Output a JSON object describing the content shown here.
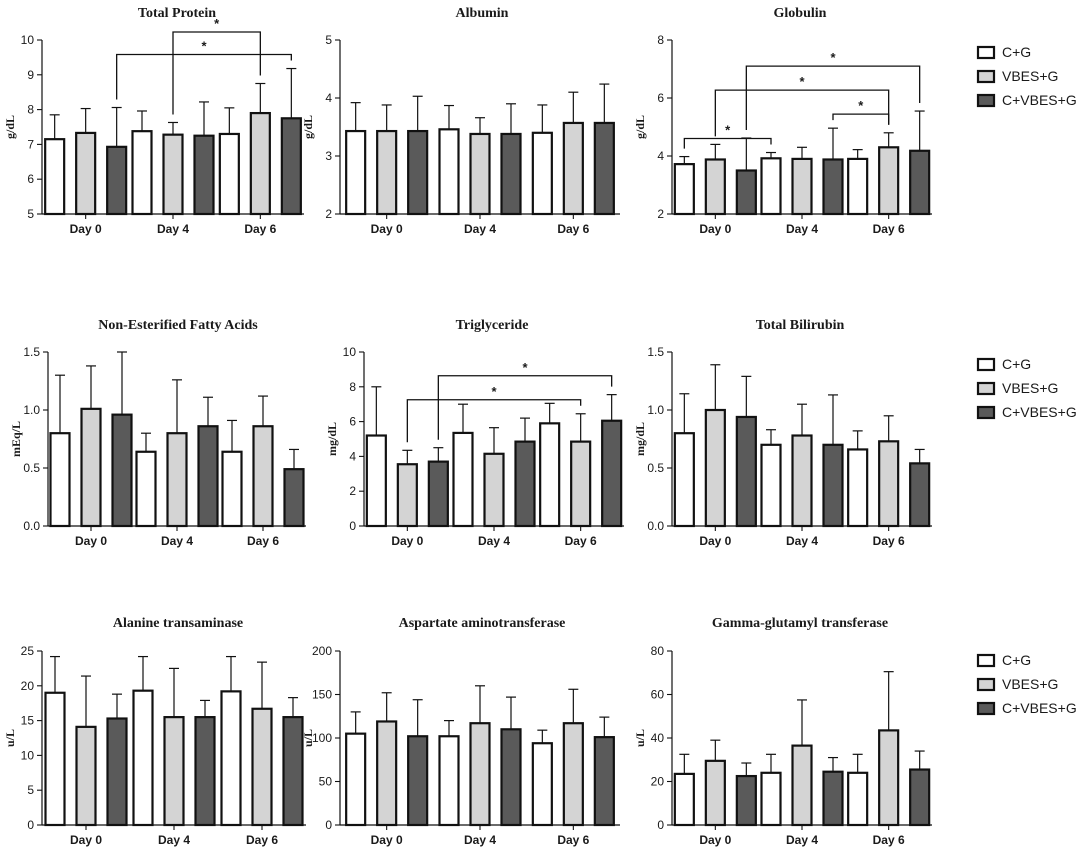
{
  "figure": {
    "legends": [
      {
        "items": [
          "C+G",
          "VBES+G",
          "C+VBES+G"
        ]
      },
      {
        "items": [
          "C+G",
          "VBES+G",
          "C+VBES+G"
        ]
      },
      {
        "items": [
          "C+G",
          "VBES+G",
          "C+VBES+G"
        ]
      }
    ]
  },
  "style": {
    "bar_colors": [
      "#ffffff",
      "#d4d4d4",
      "#5a5a5a"
    ],
    "stroke": "#111111"
  },
  "chart_data": [
    {
      "type": "bar",
      "title": "Total Protein",
      "ylabel": "g/dL",
      "categories": [
        "Day 0",
        "Day 4",
        "Day 6"
      ],
      "ylim": [
        5,
        10
      ],
      "yticks": [
        "5",
        "6",
        "7",
        "8",
        "9",
        "10"
      ],
      "series": [
        {
          "name": "C+G",
          "values": [
            7.15,
            7.38,
            7.3
          ],
          "errors": [
            0.7,
            0.58,
            0.75
          ]
        },
        {
          "name": "VBES+G",
          "values": [
            7.33,
            7.28,
            7.9
          ],
          "errors": [
            0.7,
            0.35,
            0.85
          ]
        },
        {
          "name": "C+VBES+G",
          "values": [
            6.93,
            7.25,
            7.75
          ],
          "errors": [
            1.13,
            0.97,
            1.43
          ]
        }
      ],
      "significance": [
        {
          "from": [
            0,
            2
          ],
          "to": [
            2,
            2
          ],
          "label": "*"
        },
        {
          "from": [
            1,
            1
          ],
          "to": [
            2,
            1
          ],
          "label": "*"
        }
      ]
    },
    {
      "type": "bar",
      "title": "Albumin",
      "ylabel": "g/dL",
      "categories": [
        "Day 0",
        "Day 4",
        "Day 6"
      ],
      "ylim": [
        2,
        5
      ],
      "yticks": [
        "2",
        "3",
        "4",
        "5"
      ],
      "series": [
        {
          "name": "C+G",
          "values": [
            3.43,
            3.46,
            3.4
          ],
          "errors": [
            0.49,
            0.41,
            0.48
          ]
        },
        {
          "name": "VBES+G",
          "values": [
            3.43,
            3.38,
            3.57
          ],
          "errors": [
            0.45,
            0.28,
            0.53
          ]
        },
        {
          "name": "C+VBES+G",
          "values": [
            3.43,
            3.38,
            3.57
          ],
          "errors": [
            0.6,
            0.52,
            0.67
          ]
        }
      ],
      "significance": []
    },
    {
      "type": "bar",
      "title": "Globulin",
      "ylabel": "g/dL",
      "categories": [
        "Day 0",
        "Day 4",
        "Day 6"
      ],
      "ylim": [
        2,
        8
      ],
      "yticks": [
        "2",
        "4",
        "6",
        "8"
      ],
      "series": [
        {
          "name": "C+G",
          "values": [
            3.72,
            3.92,
            3.9
          ],
          "errors": [
            0.26,
            0.2,
            0.32
          ]
        },
        {
          "name": "VBES+G",
          "values": [
            3.88,
            3.9,
            4.3
          ],
          "errors": [
            0.52,
            0.4,
            0.5
          ]
        },
        {
          "name": "C+VBES+G",
          "values": [
            3.5,
            3.88,
            4.18
          ],
          "errors": [
            1.12,
            1.08,
            1.37
          ]
        }
      ],
      "significance": [
        {
          "from": [
            0,
            0
          ],
          "to": [
            1,
            0
          ],
          "label": "*"
        },
        {
          "from": [
            1,
            2
          ],
          "to": [
            2,
            1
          ],
          "label": "*"
        },
        {
          "from": [
            0,
            1
          ],
          "to": [
            2,
            1
          ],
          "label": "*"
        },
        {
          "from": [
            0,
            2
          ],
          "to": [
            2,
            2
          ],
          "label": "*"
        }
      ]
    },
    {
      "type": "bar",
      "title": "Non-Esterified Fatty Acids",
      "ylabel": "mEq/L",
      "categories": [
        "Day 0",
        "Day 4",
        "Day 6"
      ],
      "ylim": [
        0,
        1.5
      ],
      "yticks": [
        "0.0",
        "0.5",
        "1.0",
        "1.5"
      ],
      "series": [
        {
          "name": "C+G",
          "values": [
            0.8,
            0.64,
            0.64
          ],
          "errors": [
            0.5,
            0.16,
            0.27
          ]
        },
        {
          "name": "VBES+G",
          "values": [
            1.01,
            0.8,
            0.86
          ],
          "errors": [
            0.37,
            0.46,
            0.26
          ]
        },
        {
          "name": "C+VBES+G",
          "values": [
            0.96,
            0.86,
            0.49
          ],
          "errors": [
            0.54,
            0.25,
            0.17
          ]
        }
      ],
      "significance": []
    },
    {
      "type": "bar",
      "title": "Triglyceride",
      "ylabel": "mg/dL",
      "categories": [
        "Day 0",
        "Day 4",
        "Day 6"
      ],
      "ylim": [
        0,
        10
      ],
      "yticks": [
        "0",
        "2",
        "4",
        "6",
        "8",
        "10"
      ],
      "series": [
        {
          "name": "C+G",
          "values": [
            5.2,
            5.35,
            5.9
          ],
          "errors": [
            2.8,
            1.65,
            1.15
          ]
        },
        {
          "name": "VBES+G",
          "values": [
            3.55,
            4.15,
            4.85
          ],
          "errors": [
            0.8,
            1.5,
            1.6
          ]
        },
        {
          "name": "C+VBES+G",
          "values": [
            3.7,
            4.85,
            6.05
          ],
          "errors": [
            0.8,
            1.35,
            1.5
          ]
        }
      ],
      "significance": [
        {
          "from": [
            0,
            1
          ],
          "to": [
            2,
            1
          ],
          "label": "*"
        },
        {
          "from": [
            0,
            2
          ],
          "to": [
            2,
            2
          ],
          "label": "*"
        }
      ]
    },
    {
      "type": "bar",
      "title": "Total Bilirubin",
      "ylabel": "mg/dL",
      "categories": [
        "Day 0",
        "Day 4",
        "Day 6"
      ],
      "ylim": [
        0,
        1.5
      ],
      "yticks": [
        "0.0",
        "0.5",
        "1.0",
        "1.5"
      ],
      "series": [
        {
          "name": "C+G",
          "values": [
            0.8,
            0.7,
            0.66
          ],
          "errors": [
            0.34,
            0.13,
            0.16
          ]
        },
        {
          "name": "VBES+G",
          "values": [
            1.0,
            0.78,
            0.73
          ],
          "errors": [
            0.39,
            0.27,
            0.22
          ]
        },
        {
          "name": "C+VBES+G",
          "values": [
            0.94,
            0.7,
            0.54
          ],
          "errors": [
            0.35,
            0.43,
            0.12
          ]
        }
      ],
      "significance": []
    },
    {
      "type": "bar",
      "title": "Alanine transaminase",
      "ylabel": "u/L",
      "categories": [
        "Day 0",
        "Day 4",
        "Day 6"
      ],
      "ylim": [
        0,
        25
      ],
      "yticks": [
        "0",
        "5",
        "10",
        "15",
        "20",
        "25"
      ],
      "series": [
        {
          "name": "C+G",
          "values": [
            19.0,
            19.3,
            19.2
          ],
          "errors": [
            5.2,
            4.9,
            5.0
          ]
        },
        {
          "name": "VBES+G",
          "values": [
            14.1,
            15.5,
            16.7
          ],
          "errors": [
            7.3,
            7.0,
            6.7
          ]
        },
        {
          "name": "C+VBES+G",
          "values": [
            15.3,
            15.5,
            15.5
          ],
          "errors": [
            3.5,
            2.4,
            2.8
          ]
        }
      ],
      "significance": []
    },
    {
      "type": "bar",
      "title": "Aspartate aminotransferase",
      "ylabel": "u/L",
      "categories": [
        "Day 0",
        "Day 4",
        "Day 6"
      ],
      "ylim": [
        0,
        200
      ],
      "yticks": [
        "0",
        "50",
        "100",
        "150",
        "200"
      ],
      "series": [
        {
          "name": "C+G",
          "values": [
            105,
            102,
            94
          ],
          "errors": [
            25,
            18,
            15
          ]
        },
        {
          "name": "VBES+G",
          "values": [
            119,
            117,
            117
          ],
          "errors": [
            33,
            43,
            39
          ]
        },
        {
          "name": "C+VBES+G",
          "values": [
            102,
            110,
            101
          ],
          "errors": [
            42,
            37,
            23
          ]
        }
      ],
      "significance": []
    },
    {
      "type": "bar",
      "title": "Gamma-glutamyl transferase",
      "ylabel": "u/L",
      "categories": [
        "Day 0",
        "Day 4",
        "Day 6"
      ],
      "ylim": [
        0,
        80
      ],
      "yticks": [
        "0",
        "20",
        "40",
        "60",
        "80"
      ],
      "series": [
        {
          "name": "C+G",
          "values": [
            23.5,
            24,
            24
          ],
          "errors": [
            9,
            8.5,
            8.5
          ]
        },
        {
          "name": "VBES+G",
          "values": [
            29.5,
            36.5,
            43.5
          ],
          "errors": [
            9.5,
            21,
            27
          ]
        },
        {
          "name": "C+VBES+G",
          "values": [
            22.5,
            24.5,
            25.5
          ],
          "errors": [
            6,
            6.5,
            8.5
          ]
        }
      ],
      "significance": []
    }
  ]
}
